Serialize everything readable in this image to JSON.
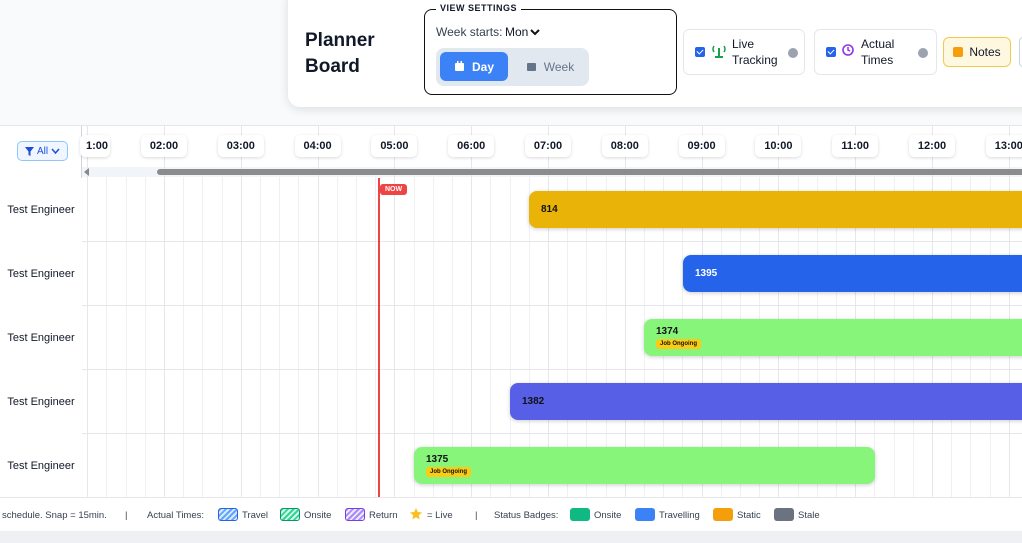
{
  "header": {
    "title": "Planner Board",
    "view_settings": {
      "legend": "VIEW SETTINGS",
      "week_starts_label": "Week starts:",
      "week_starts_value": "Mon",
      "day": "Day",
      "week": "Week"
    },
    "live_tracking": "Live Tracking",
    "actual_times": "Actual Times",
    "notes": "Notes"
  },
  "filter": "All",
  "timeline": {
    "hours": [
      "1:00",
      "02:00",
      "03:00",
      "04:00",
      "05:00",
      "06:00",
      "07:00",
      "08:00",
      "09:00",
      "10:00",
      "11:00",
      "12:00",
      "13:00"
    ],
    "now": "NOW"
  },
  "rows": [
    {
      "engineer": "Test Engineer",
      "job": "814"
    },
    {
      "engineer": "Test Engineer",
      "job": "1395"
    },
    {
      "engineer": "Test Engineer",
      "job": "1374",
      "badge": "Job Ongoing"
    },
    {
      "engineer": "Test Engineer",
      "job": "1382"
    },
    {
      "engineer": "Test Engineer",
      "job": "1375",
      "badge": "Job Ongoing"
    }
  ],
  "footer": {
    "hint": "schedule. Snap = 15min.",
    "separator": "|",
    "actual_times_label": "Actual Times:",
    "actual_times": [
      "Travel",
      "Onsite",
      "Return"
    ],
    "live": "= Live",
    "status_badges_label": "Status Badges:",
    "status_badges": [
      "Onsite",
      "Travelling",
      "Static",
      "Stale"
    ]
  }
}
